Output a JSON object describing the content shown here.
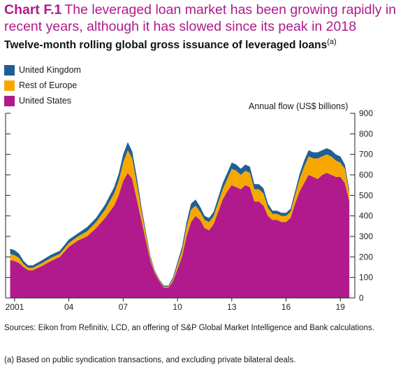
{
  "header": {
    "chart_number": "Chart F.1",
    "title": "The leveraged loan market has been growing rapidly in recent years, although it has slowed since its peak in 2018",
    "subtitle": "Twelve-month rolling global gross issuance of leveraged loans",
    "subtitle_note": "(a)"
  },
  "colors": {
    "uk": "#1f5f95",
    "rest_of_europe": "#f7a800",
    "us": "#b01a8c"
  },
  "chart_data": {
    "type": "area",
    "stacked": true,
    "ylabel": "Annual flow (US$ billions)",
    "ylim": [
      0,
      900
    ],
    "yticks": [
      0,
      100,
      200,
      300,
      400,
      500,
      600,
      700,
      800,
      900
    ],
    "xlim": [
      2000.5,
      2019.8
    ],
    "xticks": [
      {
        "value": 2001,
        "label": "2001"
      },
      {
        "value": 2004,
        "label": "04"
      },
      {
        "value": 2007,
        "label": "07"
      },
      {
        "value": 2010,
        "label": "10"
      },
      {
        "value": 2013,
        "label": "13"
      },
      {
        "value": 2016,
        "label": "16"
      },
      {
        "value": 2019,
        "label": "19"
      }
    ],
    "legend_position": "top-left",
    "grid": false,
    "x": [
      2000.75,
      2001.0,
      2001.25,
      2001.5,
      2001.75,
      2002.0,
      2002.5,
      2003.0,
      2003.5,
      2004.0,
      2004.5,
      2005.0,
      2005.5,
      2006.0,
      2006.5,
      2006.75,
      2007.0,
      2007.25,
      2007.5,
      2007.75,
      2008.0,
      2008.25,
      2008.5,
      2008.75,
      2009.0,
      2009.25,
      2009.5,
      2009.75,
      2010.0,
      2010.25,
      2010.5,
      2010.75,
      2011.0,
      2011.25,
      2011.5,
      2011.75,
      2012.0,
      2012.25,
      2012.5,
      2012.75,
      2013.0,
      2013.25,
      2013.5,
      2013.75,
      2014.0,
      2014.25,
      2014.5,
      2014.75,
      2015.0,
      2015.25,
      2015.5,
      2015.75,
      2016.0,
      2016.25,
      2016.5,
      2016.75,
      2017.0,
      2017.25,
      2017.5,
      2017.75,
      2018.0,
      2018.25,
      2018.5,
      2018.75,
      2019.0,
      2019.25,
      2019.5
    ],
    "series": [
      {
        "name": "United States",
        "values": [
          185,
          180,
          170,
          150,
          135,
          135,
          155,
          180,
          200,
          250,
          280,
          300,
          340,
          390,
          450,
          500,
          570,
          610,
          580,
          480,
          380,
          280,
          180,
          120,
          80,
          50,
          50,
          80,
          140,
          200,
          300,
          370,
          400,
          380,
          340,
          330,
          360,
          420,
          480,
          520,
          550,
          540,
          530,
          550,
          540,
          470,
          470,
          450,
          400,
          380,
          380,
          370,
          370,
          390,
          460,
          520,
          560,
          600,
          590,
          580,
          600,
          610,
          600,
          590,
          590,
          560,
          470
        ]
      },
      {
        "name": "Rest of Europe",
        "values": [
          30,
          28,
          25,
          15,
          12,
          12,
          14,
          15,
          15,
          18,
          20,
          25,
          30,
          40,
          60,
          70,
          90,
          110,
          100,
          80,
          50,
          30,
          15,
          8,
          5,
          5,
          5,
          10,
          20,
          30,
          45,
          60,
          50,
          40,
          40,
          40,
          40,
          45,
          50,
          60,
          80,
          80,
          70,
          70,
          70,
          60,
          60,
          60,
          40,
          30,
          30,
          30,
          30,
          30,
          40,
          60,
          80,
          90,
          90,
          100,
          90,
          90,
          90,
          80,
          70,
          70,
          40
        ]
      },
      {
        "name": "United Kingdom",
        "values": [
          25,
          25,
          20,
          15,
          12,
          12,
          14,
          15,
          15,
          17,
          15,
          20,
          20,
          25,
          30,
          35,
          40,
          40,
          35,
          30,
          20,
          15,
          10,
          5,
          5,
          5,
          5,
          10,
          15,
          20,
          25,
          30,
          30,
          25,
          20,
          20,
          20,
          25,
          30,
          30,
          30,
          30,
          30,
          30,
          30,
          25,
          25,
          25,
          20,
          15,
          15,
          15,
          15,
          15,
          20,
          25,
          30,
          30,
          30,
          30,
          30,
          30,
          30,
          30,
          30,
          20,
          15
        ]
      }
    ]
  },
  "footer": {
    "source": "Sources: Eikon from Refinitiv, LCD, an offering of S&P Global Market Intelligence and Bank calculations.",
    "footnote": "(a) Based on public syndication transactions, and excluding private bilateral deals."
  }
}
